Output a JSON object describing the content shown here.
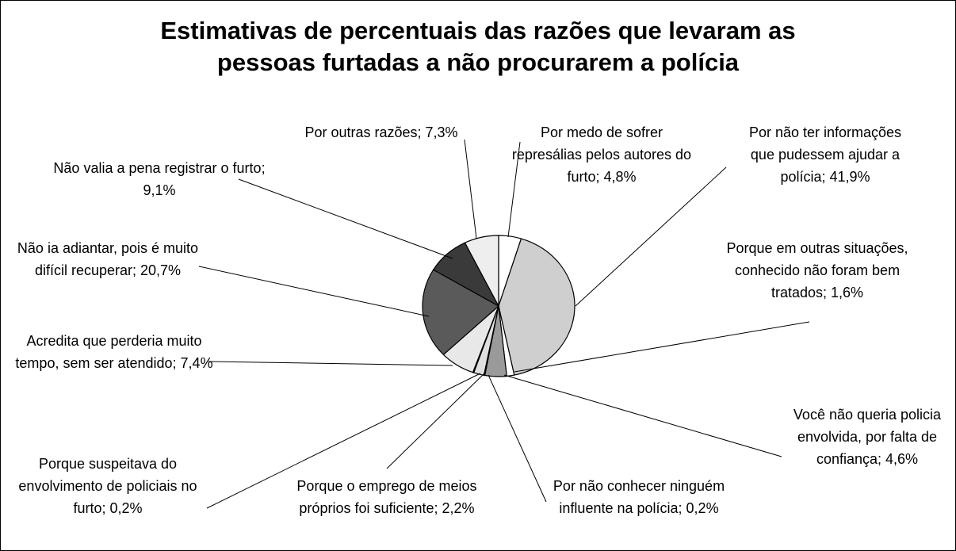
{
  "chart_data": {
    "type": "pie",
    "title": "Estimativas de percentuais das razões que levaram as pessoas furtadas a não procurarem a polícia",
    "categories": [
      "Por medo de sofrer represálias pelos autores do furto;",
      "Por não ter informações que pudessem ajudar a polícia;",
      "Porque em outras situações, conhecido não foram bem tratados;",
      "Você não queria policia envolvida, por falta de confiança;",
      "Por não conhecer ninguém influente na polícia;",
      "Porque o emprego de meios próprios foi suficiente;",
      "Porque suspeitava do envolvimento de policiais no furto;",
      "Acredita que perderia muito tempo, sem ser atendido;",
      "Não ia adiantar, pois é muito difícil recuperar;",
      "Não valia a pena registrar o furto;",
      "Por outras razões;"
    ],
    "values": [
      4.8,
      41.9,
      1.6,
      4.6,
      0.2,
      2.2,
      0.2,
      7.4,
      20.7,
      9.1,
      7.3
    ],
    "value_labels": [
      "4,8%",
      "41,9%",
      "1,6%",
      "4,6%",
      "0,2%",
      "2,2%",
      "0,2%",
      "7,4%",
      "20,7%",
      "9,1%",
      "7,3%"
    ],
    "colors": [
      "#ffffff",
      "#cfcfcf",
      "#ffffff",
      "#9a9a9a",
      "#ffffff",
      "#e0e0e0",
      "#ffffff",
      "#e8e8e8",
      "#5a5a5a",
      "#3a3a3a",
      "#eeeeee"
    ]
  }
}
